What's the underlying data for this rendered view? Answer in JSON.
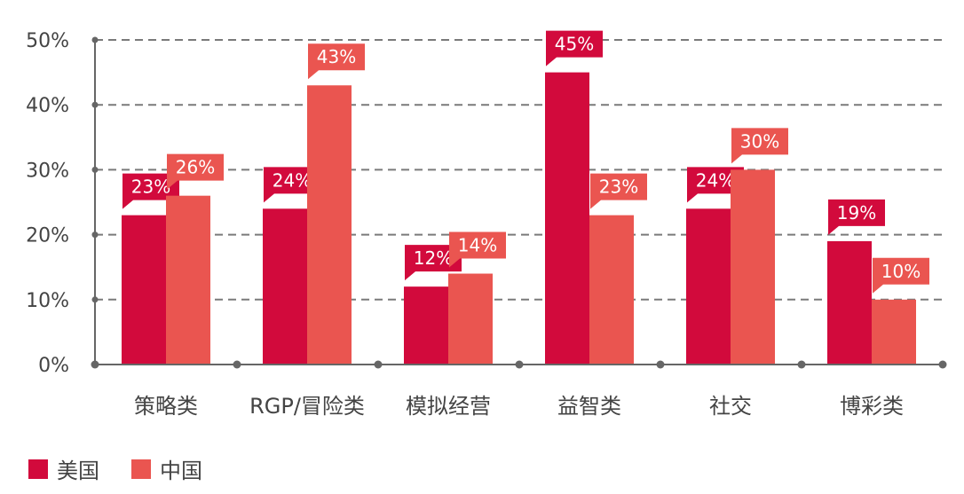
{
  "chart_data": {
    "type": "bar",
    "categories": [
      "策略类",
      "RGP/冒险类",
      "模拟经营",
      "益智类",
      "社交",
      "博彩类"
    ],
    "series": [
      {
        "name": "美国",
        "color": "#d20a3c",
        "values": [
          23,
          24,
          12,
          45,
          24,
          19
        ],
        "labels": [
          "23%",
          "24%",
          "12%",
          "45%",
          "24%",
          "19%"
        ]
      },
      {
        "name": "中国",
        "color": "#ea5550",
        "values": [
          26,
          43,
          14,
          23,
          30,
          10
        ],
        "labels": [
          "26%",
          "43%",
          "14%",
          "23%",
          "30%",
          "10%"
        ]
      }
    ],
    "yticks": [
      "0%",
      "10%",
      "20%",
      "30%",
      "40%",
      "50%"
    ],
    "ylim": [
      0,
      50
    ],
    "grid": true,
    "legend_position": "bottom-left"
  }
}
